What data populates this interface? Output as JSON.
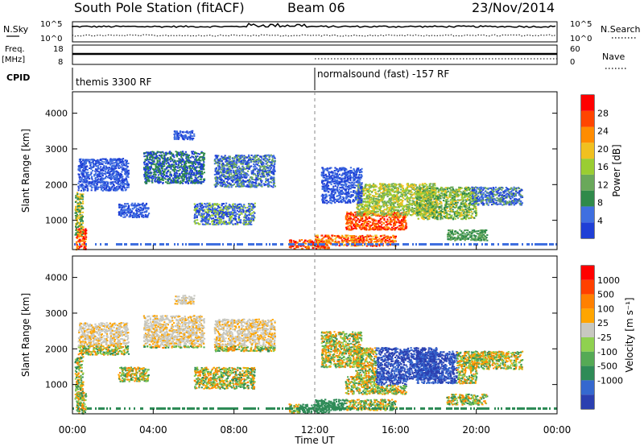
{
  "header": {
    "title": "South Pole Station (fitACF)",
    "beam": "Beam 06",
    "date": "23/Nov/2014"
  },
  "left_labels": {
    "nsky": "N.Sky",
    "freq": "Freq.",
    "freq_unit": "[MHz]",
    "cpid": "CPID"
  },
  "right_labels": {
    "nsearch": "N.Search",
    "nave": "Nave"
  },
  "cpid_segments": [
    {
      "label": "themis 3300 RF",
      "start_hour": 0
    },
    {
      "label": "normalsound (fast) -157 RF",
      "start_hour": 12
    }
  ],
  "colors": {
    "power": [
      "#1f3fd6",
      "#3f6fe0",
      "#2f8a4a",
      "#6aa85a",
      "#9acd32",
      "#f0c020",
      "#ff8c00",
      "#ff4500",
      "#ff0000"
    ],
    "velocity": [
      "#2b3fb0",
      "#3568cf",
      "#2e8b57",
      "#55aa55",
      "#8fd14f",
      "#c8c8c0",
      "#ffa500",
      "#ff8000",
      "#ff4000",
      "#ff0000"
    ]
  },
  "chart_data": [
    {
      "type": "line",
      "name": "noise-panel",
      "left_axis": {
        "label": "N.Sky",
        "ticks": [
          "10^5",
          "10^0"
        ]
      },
      "right_axis": {
        "label": "N.Search",
        "ticks": [
          "10^5",
          "10^0"
        ]
      },
      "xlim": [
        0,
        24
      ]
    },
    {
      "type": "line",
      "name": "frequency-nave-panel",
      "left_axis": {
        "label": "Freq. [MHz]",
        "ticks": [
          "18",
          "8"
        ]
      },
      "right_axis": {
        "label": "Nave",
        "ticks": [
          "60",
          "0"
        ]
      },
      "xlim": [
        0,
        24
      ]
    },
    {
      "type": "heatmap",
      "name": "power-panel",
      "ylabel": "Slant Range [km]",
      "ylim": [
        180,
        4600
      ],
      "yticks": [
        1000,
        2000,
        3000,
        4000
      ],
      "xlim": [
        0,
        24
      ],
      "colorbar": {
        "label": "Power [dB]",
        "ticks": [
          4,
          8,
          12,
          16,
          20,
          24,
          28
        ]
      }
    },
    {
      "type": "heatmap",
      "name": "velocity-panel",
      "ylabel": "Slant Range [km]",
      "ylim": [
        180,
        4600
      ],
      "yticks": [
        1000,
        2000,
        3000,
        4000
      ],
      "xlabel": "Time UT",
      "xticks": [
        "00:00",
        "04:00",
        "08:00",
        "12:00",
        "16:00",
        "20:00",
        "00:00"
      ],
      "xlim": [
        0,
        24
      ],
      "colorbar": {
        "label": "Velocity [m s⁻¹]",
        "ticks": [
          "1000",
          "500",
          "100",
          "25",
          "-25",
          "-100",
          "-500",
          "-1000"
        ]
      }
    }
  ]
}
